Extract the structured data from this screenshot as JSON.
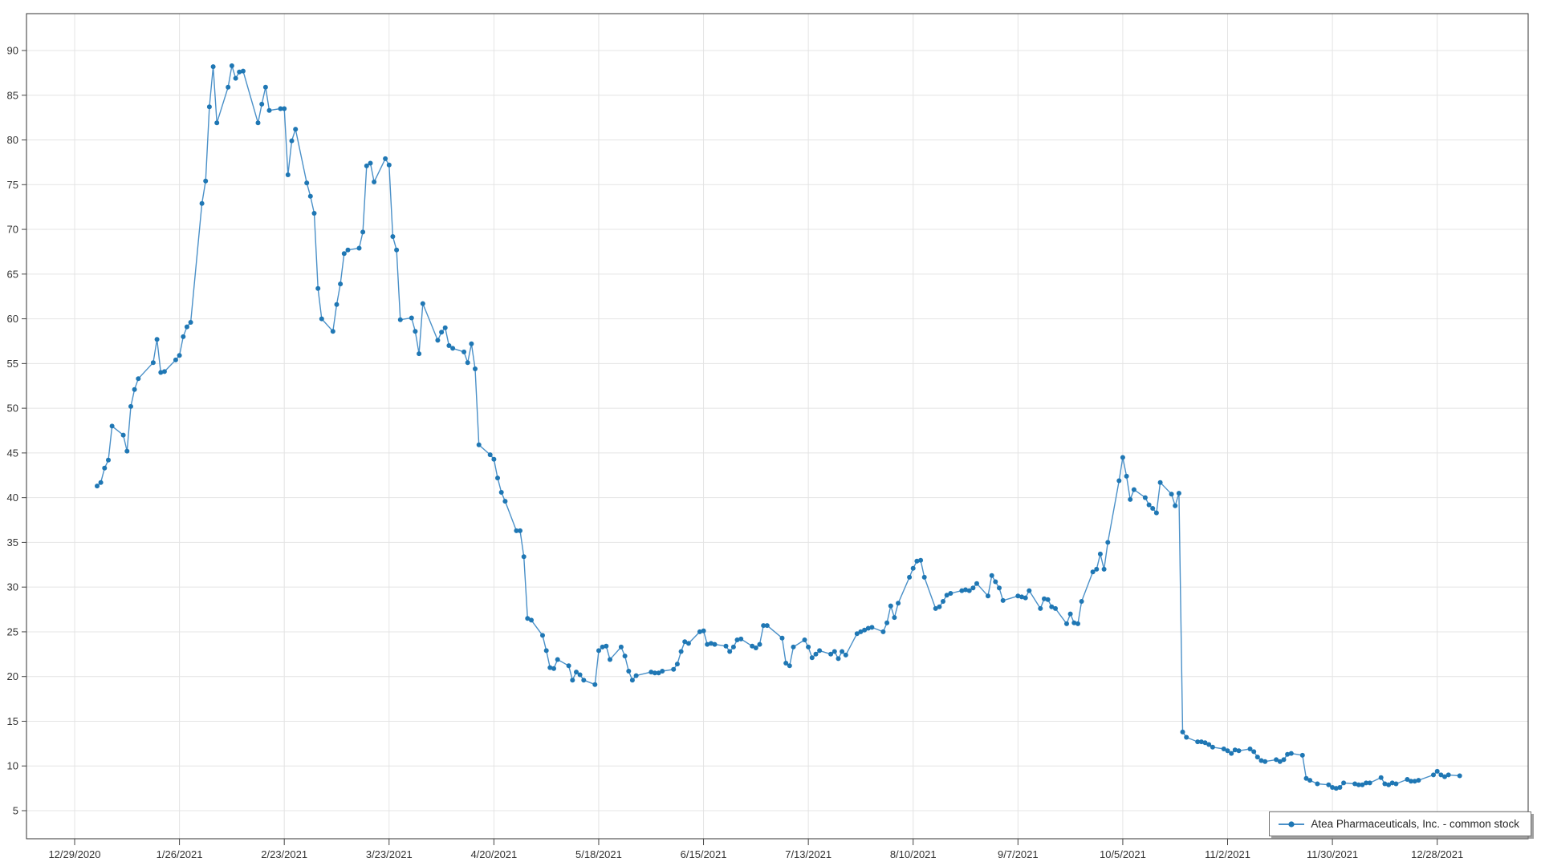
{
  "chart": {
    "colors": {
      "line": "#4a90c8",
      "marker": "#1f77b4",
      "grid": "#e4e4e4",
      "frame": "#333333",
      "tick": "#444444",
      "label": "#333333",
      "legend_border": "#767676",
      "background": "#ffffff"
    },
    "legend": {
      "label": "Atea Pharmaceuticals, Inc. - common stock",
      "position": "bottom-right"
    }
  },
  "chart_data": {
    "type": "line",
    "title": "",
    "xlabel": "",
    "ylabel": "",
    "grid": true,
    "marker": "circle",
    "legend_position": "bottom-right",
    "ylim": [
      1.9,
      94.1
    ],
    "y_ticks": [
      5,
      10,
      15,
      20,
      25,
      30,
      35,
      40,
      45,
      50,
      55,
      60,
      65,
      70,
      75,
      80,
      85,
      90
    ],
    "x_ticks": [
      {
        "date": "2020-12-29",
        "label": "12/29/2020"
      },
      {
        "date": "2021-01-26",
        "label": "1/26/2021"
      },
      {
        "date": "2021-02-23",
        "label": "2/23/2021"
      },
      {
        "date": "2021-03-23",
        "label": "3/23/2021"
      },
      {
        "date": "2021-04-20",
        "label": "4/20/2021"
      },
      {
        "date": "2021-05-18",
        "label": "5/18/2021"
      },
      {
        "date": "2021-06-15",
        "label": "6/15/2021"
      },
      {
        "date": "2021-07-13",
        "label": "7/13/2021"
      },
      {
        "date": "2021-08-10",
        "label": "8/10/2021"
      },
      {
        "date": "2021-09-07",
        "label": "9/7/2021"
      },
      {
        "date": "2021-10-05",
        "label": "10/5/2021"
      },
      {
        "date": "2021-11-02",
        "label": "11/2/2021"
      },
      {
        "date": "2021-11-30",
        "label": "11/30/2021"
      },
      {
        "date": "2021-12-28",
        "label": "12/28/2021"
      }
    ],
    "series": [
      {
        "name": "Atea Pharmaceuticals, Inc. - common stock",
        "dates": [
          "2021-01-04",
          "2021-01-05",
          "2021-01-06",
          "2021-01-07",
          "2021-01-08",
          "2021-01-11",
          "2021-01-12",
          "2021-01-13",
          "2021-01-14",
          "2021-01-15",
          "2021-01-19",
          "2021-01-20",
          "2021-01-21",
          "2021-01-22",
          "2021-01-25",
          "2021-01-26",
          "2021-01-27",
          "2021-01-28",
          "2021-01-29",
          "2021-02-01",
          "2021-02-02",
          "2021-02-03",
          "2021-02-04",
          "2021-02-05",
          "2021-02-08",
          "2021-02-09",
          "2021-02-10",
          "2021-02-11",
          "2021-02-12",
          "2021-02-16",
          "2021-02-17",
          "2021-02-18",
          "2021-02-19",
          "2021-02-22",
          "2021-02-23",
          "2021-02-24",
          "2021-02-25",
          "2021-02-26",
          "2021-03-01",
          "2021-03-02",
          "2021-03-03",
          "2021-03-04",
          "2021-03-05",
          "2021-03-08",
          "2021-03-09",
          "2021-03-10",
          "2021-03-11",
          "2021-03-12",
          "2021-03-15",
          "2021-03-16",
          "2021-03-17",
          "2021-03-18",
          "2021-03-19",
          "2021-03-22",
          "2021-03-23",
          "2021-03-24",
          "2021-03-25",
          "2021-03-26",
          "2021-03-29",
          "2021-03-30",
          "2021-03-31",
          "2021-04-01",
          "2021-04-05",
          "2021-04-06",
          "2021-04-07",
          "2021-04-08",
          "2021-04-09",
          "2021-04-12",
          "2021-04-13",
          "2021-04-14",
          "2021-04-15",
          "2021-04-16",
          "2021-04-19",
          "2021-04-20",
          "2021-04-21",
          "2021-04-22",
          "2021-04-23",
          "2021-04-26",
          "2021-04-27",
          "2021-04-28",
          "2021-04-29",
          "2021-04-30",
          "2021-05-03",
          "2021-05-04",
          "2021-05-05",
          "2021-05-06",
          "2021-05-07",
          "2021-05-10",
          "2021-05-11",
          "2021-05-12",
          "2021-05-13",
          "2021-05-14",
          "2021-05-17",
          "2021-05-18",
          "2021-05-19",
          "2021-05-20",
          "2021-05-21",
          "2021-05-24",
          "2021-05-25",
          "2021-05-26",
          "2021-05-27",
          "2021-05-28",
          "2021-06-01",
          "2021-06-02",
          "2021-06-03",
          "2021-06-04",
          "2021-06-07",
          "2021-06-08",
          "2021-06-09",
          "2021-06-10",
          "2021-06-11",
          "2021-06-14",
          "2021-06-15",
          "2021-06-16",
          "2021-06-17",
          "2021-06-18",
          "2021-06-21",
          "2021-06-22",
          "2021-06-23",
          "2021-06-24",
          "2021-06-25",
          "2021-06-28",
          "2021-06-29",
          "2021-06-30",
          "2021-07-01",
          "2021-07-02",
          "2021-07-06",
          "2021-07-07",
          "2021-07-08",
          "2021-07-09",
          "2021-07-12",
          "2021-07-13",
          "2021-07-14",
          "2021-07-15",
          "2021-07-16",
          "2021-07-19",
          "2021-07-20",
          "2021-07-21",
          "2021-07-22",
          "2021-07-23",
          "2021-07-26",
          "2021-07-27",
          "2021-07-28",
          "2021-07-29",
          "2021-07-30",
          "2021-08-02",
          "2021-08-03",
          "2021-08-04",
          "2021-08-05",
          "2021-08-06",
          "2021-08-09",
          "2021-08-10",
          "2021-08-11",
          "2021-08-12",
          "2021-08-13",
          "2021-08-16",
          "2021-08-17",
          "2021-08-18",
          "2021-08-19",
          "2021-08-20",
          "2021-08-23",
          "2021-08-24",
          "2021-08-25",
          "2021-08-26",
          "2021-08-27",
          "2021-08-30",
          "2021-08-31",
          "2021-09-01",
          "2021-09-02",
          "2021-09-03",
          "2021-09-07",
          "2021-09-08",
          "2021-09-09",
          "2021-09-10",
          "2021-09-13",
          "2021-09-14",
          "2021-09-15",
          "2021-09-16",
          "2021-09-17",
          "2021-09-20",
          "2021-09-21",
          "2021-09-22",
          "2021-09-23",
          "2021-09-24",
          "2021-09-27",
          "2021-09-28",
          "2021-09-29",
          "2021-09-30",
          "2021-10-01",
          "2021-10-04",
          "2021-10-05",
          "2021-10-06",
          "2021-10-07",
          "2021-10-08",
          "2021-10-11",
          "2021-10-12",
          "2021-10-13",
          "2021-10-14",
          "2021-10-15",
          "2021-10-18",
          "2021-10-19",
          "2021-10-20",
          "2021-10-21",
          "2021-10-22",
          "2021-10-25",
          "2021-10-26",
          "2021-10-27",
          "2021-10-28",
          "2021-10-29",
          "2021-11-01",
          "2021-11-02",
          "2021-11-03",
          "2021-11-04",
          "2021-11-05",
          "2021-11-08",
          "2021-11-09",
          "2021-11-10",
          "2021-11-11",
          "2021-11-12",
          "2021-11-15",
          "2021-11-16",
          "2021-11-17",
          "2021-11-18",
          "2021-11-19",
          "2021-11-22",
          "2021-11-23",
          "2021-11-24",
          "2021-11-26",
          "2021-11-29",
          "2021-11-30",
          "2021-12-01",
          "2021-12-02",
          "2021-12-03",
          "2021-12-06",
          "2021-12-07",
          "2021-12-08",
          "2021-12-09",
          "2021-12-10",
          "2021-12-13",
          "2021-12-14",
          "2021-12-15",
          "2021-12-16",
          "2021-12-17",
          "2021-12-20",
          "2021-12-21",
          "2021-12-22",
          "2021-12-23",
          "2021-12-27",
          "2021-12-28",
          "2021-12-29",
          "2021-12-30",
          "2021-12-31",
          "2022-01-03"
        ],
        "closes": [
          41.3,
          41.7,
          43.3,
          44.2,
          48.0,
          47.0,
          45.2,
          50.2,
          52.1,
          53.3,
          55.1,
          57.7,
          54.0,
          54.1,
          55.4,
          55.9,
          58.0,
          59.1,
          59.6,
          72.9,
          75.4,
          83.7,
          88.2,
          81.9,
          85.9,
          88.3,
          86.9,
          87.6,
          87.7,
          81.9,
          84.0,
          85.9,
          83.3,
          83.5,
          83.5,
          76.1,
          79.9,
          81.2,
          75.2,
          73.7,
          71.8,
          63.4,
          60.0,
          58.6,
          61.6,
          63.9,
          67.3,
          67.7,
          67.9,
          69.7,
          77.1,
          77.4,
          75.3,
          77.9,
          77.2,
          69.2,
          67.7,
          59.9,
          60.1,
          58.6,
          56.1,
          61.7,
          57.6,
          58.5,
          59.0,
          57.0,
          56.7,
          56.3,
          55.1,
          57.2,
          54.4,
          45.9,
          44.8,
          44.3,
          42.2,
          40.6,
          39.6,
          36.3,
          36.3,
          33.4,
          26.5,
          26.3,
          24.6,
          22.9,
          21.0,
          20.9,
          21.9,
          21.2,
          19.6,
          20.5,
          20.2,
          19.6,
          19.1,
          22.9,
          23.3,
          23.4,
          21.9,
          23.3,
          22.3,
          20.6,
          19.6,
          20.1,
          20.5,
          20.4,
          20.4,
          20.6,
          20.8,
          21.4,
          22.8,
          23.9,
          23.7,
          25.0,
          25.1,
          23.6,
          23.7,
          23.6,
          23.4,
          22.8,
          23.3,
          24.1,
          24.2,
          23.4,
          23.2,
          23.6,
          25.7,
          25.7,
          24.3,
          21.5,
          21.2,
          23.3,
          24.1,
          23.3,
          22.1,
          22.5,
          22.9,
          22.5,
          22.8,
          22.0,
          22.8,
          22.4,
          24.8,
          25.0,
          25.2,
          25.4,
          25.5,
          25.0,
          26.0,
          27.9,
          26.6,
          28.2,
          31.1,
          32.1,
          32.9,
          33.0,
          31.1,
          27.6,
          27.8,
          28.4,
          29.1,
          29.3,
          29.6,
          29.7,
          29.6,
          29.9,
          30.4,
          29.0,
          31.3,
          30.6,
          29.9,
          28.5,
          29.0,
          28.9,
          28.8,
          29.6,
          27.6,
          28.7,
          28.6,
          27.8,
          27.6,
          25.9,
          27.0,
          26.0,
          25.9,
          28.4,
          31.7,
          32.0,
          33.7,
          32.0,
          35.0,
          41.9,
          44.5,
          42.4,
          39.8,
          40.9,
          40.0,
          39.2,
          38.8,
          38.3,
          41.7,
          40.4,
          39.1,
          40.5,
          13.8,
          13.2,
          12.7,
          12.7,
          12.6,
          12.4,
          12.1,
          11.9,
          11.7,
          11.4,
          11.8,
          11.7,
          11.9,
          11.6,
          11.0,
          10.6,
          10.5,
          10.7,
          10.5,
          10.7,
          11.3,
          11.4,
          11.2,
          8.6,
          8.4,
          8.0,
          7.9,
          7.6,
          7.5,
          7.6,
          8.1,
          8.0,
          7.9,
          7.9,
          8.1,
          8.1,
          8.7,
          8.0,
          7.9,
          8.1,
          8.0,
          8.5,
          8.3,
          8.3,
          8.4,
          9.0,
          9.4,
          9.0,
          8.8,
          9.0,
          8.9
        ]
      }
    ]
  }
}
